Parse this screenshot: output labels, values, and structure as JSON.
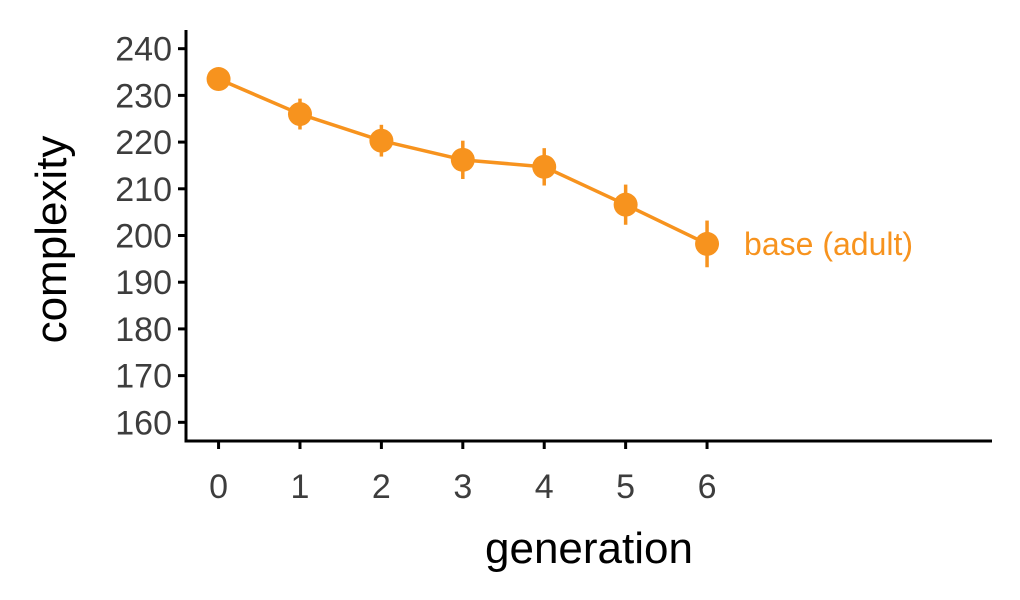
{
  "chart_data": {
    "type": "line",
    "title": "",
    "xlabel": "generation",
    "ylabel": "complexity",
    "x": [
      0,
      1,
      2,
      3,
      4,
      5,
      6
    ],
    "xlim": [
      -0.4,
      9.5
    ],
    "ylim": [
      156,
      244
    ],
    "yticks": [
      160,
      170,
      180,
      190,
      200,
      210,
      220,
      230,
      240
    ],
    "xticks": [
      0,
      1,
      2,
      3,
      4,
      5,
      6
    ],
    "grid": false,
    "series": [
      {
        "name": "base (adult)",
        "color": "#f7931e",
        "values": [
          233.5,
          226,
          220.3,
          216.2,
          214.7,
          206.6,
          198.2
        ],
        "error_low": [
          232.2,
          222.7,
          216.9,
          212.1,
          210.7,
          202.3,
          193.2
        ],
        "error_high": [
          234.8,
          229.3,
          223.7,
          220.3,
          218.7,
          210.9,
          203.2
        ]
      }
    ]
  }
}
